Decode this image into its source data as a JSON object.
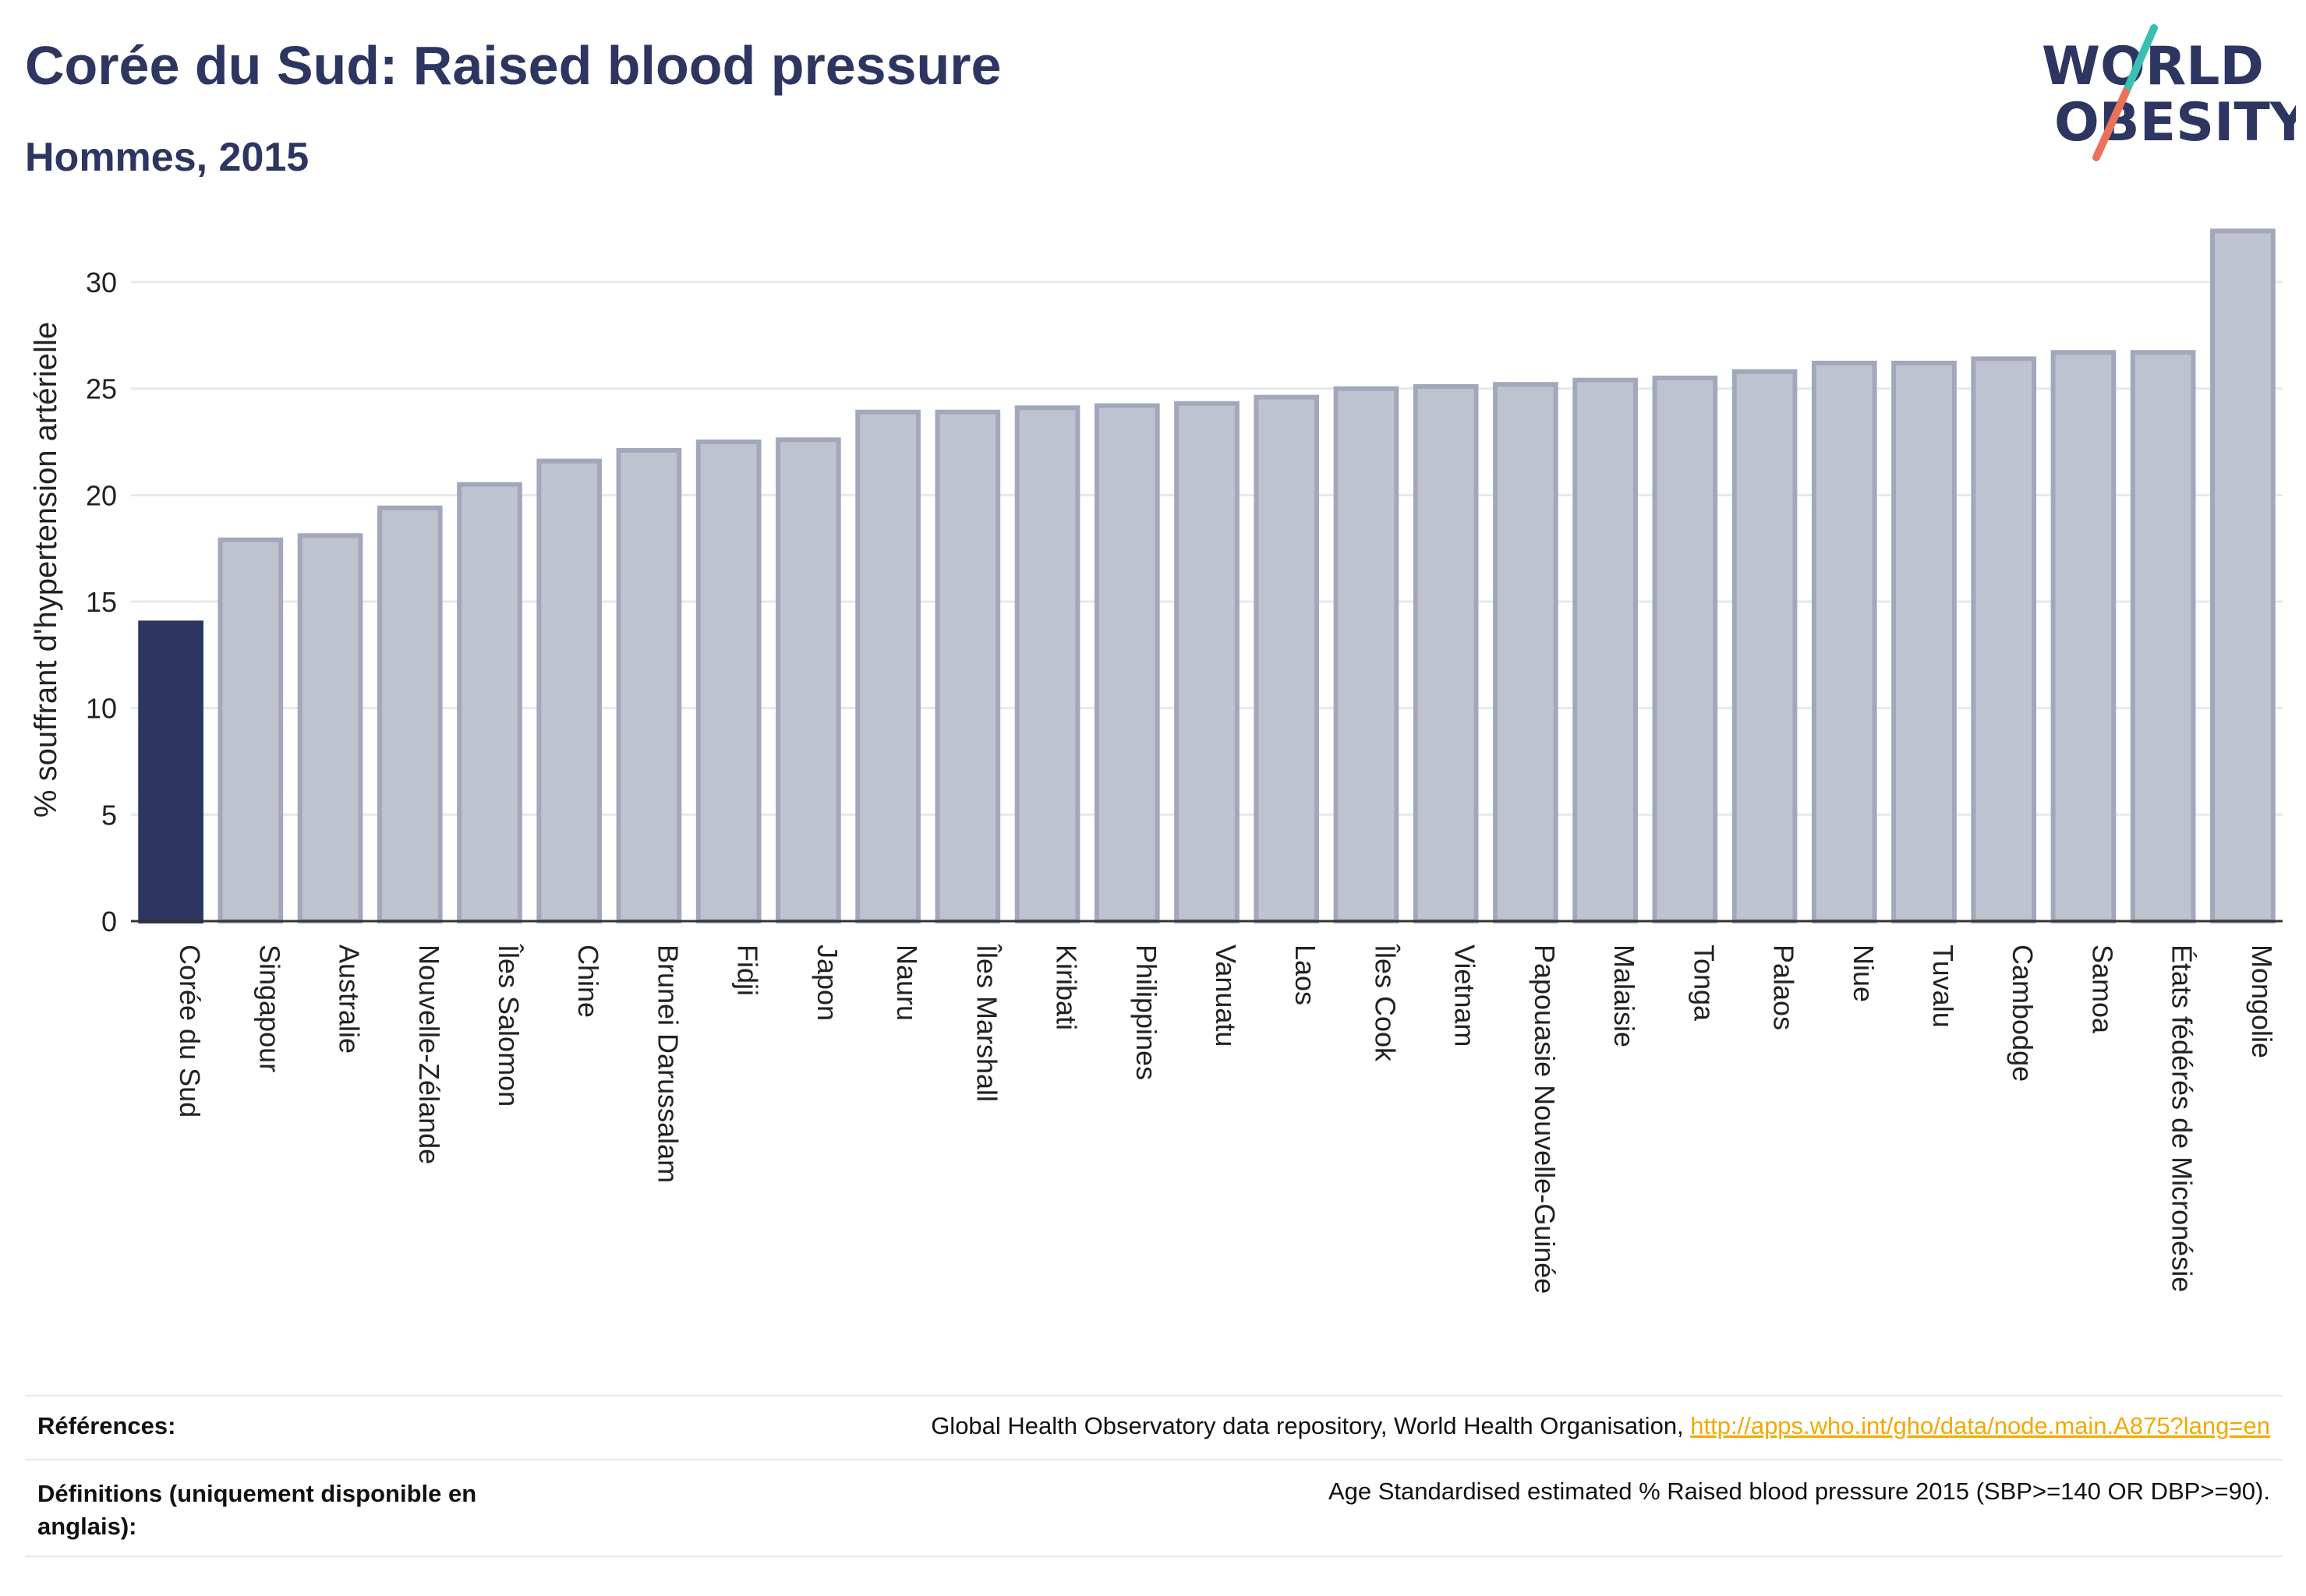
{
  "header": {
    "title": "Corée du Sud: Raised blood pressure",
    "subtitle": "Hommes, 2015"
  },
  "logo": {
    "line1": "WORLD",
    "line2": "OBESITY"
  },
  "chart_data": {
    "type": "bar",
    "title": "Corée du Sud: Raised blood pressure",
    "subtitle": "Hommes, 2015",
    "ylabel": "% souffrant d'hypertension artérielle",
    "xlabel": "",
    "ylim": [
      0,
      33
    ],
    "yticks": [
      0,
      5,
      10,
      15,
      20,
      25,
      30
    ],
    "grid": true,
    "highlight_index": 0,
    "colors": {
      "highlight": "#2d3561",
      "bar": "#bfc3d0",
      "bar_border": "#a2a8bc",
      "grid": "#e6e8ef"
    },
    "categories": [
      "Corée du Sud",
      "Singapour",
      "Australie",
      "Nouvelle-Zélande",
      "Îles Salomon",
      "Chine",
      "Brunei Darussalam",
      "Fidji",
      "Japon",
      "Nauru",
      "Îles Marshall",
      "Kiribati",
      "Philippines",
      "Vanuatu",
      "Laos",
      "Îles Cook",
      "Vietnam",
      "Papouasie Nouvelle-Guinée",
      "Malaisie",
      "Tonga",
      "Palaos",
      "Niue",
      "Tuvalu",
      "Cambodge",
      "Samoa",
      "États fédérés de Micronésie",
      "Mongolie"
    ],
    "values": [
      14.0,
      17.9,
      18.1,
      19.4,
      20.5,
      21.6,
      22.1,
      22.5,
      22.6,
      23.9,
      23.9,
      24.1,
      24.2,
      24.3,
      24.6,
      25.0,
      25.1,
      25.2,
      25.4,
      25.5,
      25.8,
      26.2,
      26.2,
      26.4,
      26.7,
      26.7,
      32.4
    ]
  },
  "references": {
    "label": "Références:",
    "text": "Global Health Observatory data repository, World Health Organisation, ",
    "link": "http://apps.who.int/gho/data/node.main.A875?lang=en"
  },
  "definitions": {
    "label": "Définitions (uniquement disponible en anglais):",
    "text": "Age Standardised estimated % Raised blood pressure 2015 (SBP>=140 OR DBP>=90)."
  }
}
